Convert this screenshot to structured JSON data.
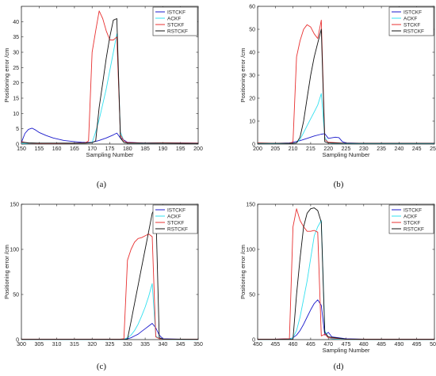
{
  "colors": {
    "ISTCKF": "#1a1acc",
    "ACKF": "#33e0f0",
    "STCKF": "#e83030",
    "RSTCKF": "#111111"
  },
  "chart_data": [
    {
      "type": "line",
      "caption": "(a)",
      "xlabel": "Sampling Number",
      "ylabel": "Positioning error /cm",
      "xlim": [
        150,
        200
      ],
      "ylim": [
        0,
        45
      ],
      "xticks": [
        150,
        155,
        160,
        165,
        170,
        175,
        180,
        185,
        190,
        195,
        200
      ],
      "yticks": [
        0,
        5,
        10,
        15,
        20,
        25,
        30,
        35,
        40
      ],
      "legend_position": "top-right",
      "series": [
        {
          "name": "ISTCKF",
          "x": [
            150,
            151,
            152,
            153,
            154,
            155,
            157,
            159,
            162,
            165,
            167,
            169,
            170,
            172,
            174,
            176,
            177,
            178,
            180,
            185,
            190,
            200
          ],
          "y": [
            0.5,
            3.5,
            4.8,
            5.2,
            4.6,
            3.8,
            2.8,
            2.0,
            1.2,
            0.8,
            0.6,
            0.5,
            0.6,
            1.2,
            2.0,
            3.0,
            3.6,
            2.0,
            0.6,
            0.3,
            0.4,
            0.3
          ]
        },
        {
          "name": "ACKF",
          "x": [
            150,
            160,
            168,
            170,
            171,
            172,
            173,
            174,
            175,
            176,
            177,
            178,
            179,
            180,
            185,
            190,
            200
          ],
          "y": [
            0.2,
            0.2,
            0.3,
            0.5,
            4,
            8,
            13,
            18,
            24,
            30,
            36,
            4,
            1,
            0.3,
            0.2,
            0.3,
            0.2
          ]
        },
        {
          "name": "STCKF",
          "x": [
            150,
            152,
            155,
            160,
            165,
            168,
            169,
            170,
            171,
            172,
            173,
            174,
            175,
            176,
            177,
            178,
            179,
            180,
            185,
            190,
            200
          ],
          "y": [
            0.8,
            0.3,
            0.2,
            0.2,
            0.3,
            0.4,
            1,
            30,
            37,
            43.5,
            41,
            37,
            34,
            34,
            35,
            3,
            1,
            0.5,
            0.3,
            0.4,
            0.3
          ]
        },
        {
          "name": "RSTCKF",
          "x": [
            150,
            152,
            155,
            160,
            165,
            168,
            169,
            170,
            171,
            172,
            173,
            174,
            175,
            176,
            177,
            178,
            179,
            180,
            185,
            190,
            200
          ],
          "y": [
            0.6,
            0.4,
            0.3,
            0.3,
            0.3,
            0.3,
            0.4,
            0.5,
            1,
            12,
            20,
            28,
            35,
            40.5,
            41,
            2,
            0.5,
            0.3,
            0.3,
            0.3,
            0.2
          ]
        }
      ]
    },
    {
      "type": "line",
      "caption": "(b)",
      "xlabel": "Sampling Number",
      "ylabel": "Positioning error /cm",
      "xlim": [
        200,
        250
      ],
      "ylim": [
        0,
        60
      ],
      "xticks": [
        200,
        205,
        210,
        215,
        220,
        225,
        230,
        235,
        240,
        245,
        250
      ],
      "yticks": [
        0,
        10,
        20,
        30,
        40,
        50,
        60
      ],
      "legend_position": "top-right",
      "series": [
        {
          "name": "ISTCKF",
          "x": [
            200,
            205,
            209,
            210,
            212,
            214,
            216,
            218,
            219,
            220,
            222,
            223,
            224,
            225,
            230,
            235,
            240,
            245,
            250
          ],
          "y": [
            0.3,
            0.3,
            0.5,
            0.8,
            1.5,
            2.5,
            3.5,
            4.3,
            4.5,
            2.5,
            3,
            2.8,
            1,
            0.5,
            0.3,
            0.3,
            0.3,
            0.3,
            0.3
          ]
        },
        {
          "name": "ACKF",
          "x": [
            200,
            205,
            210,
            211,
            212,
            213,
            214,
            215,
            216,
            217,
            218,
            219,
            220,
            221,
            225,
            230,
            240,
            250
          ],
          "y": [
            0.2,
            0.2,
            0.3,
            0.5,
            2,
            5,
            8,
            11,
            14,
            17,
            22,
            3,
            0.5,
            0.3,
            0.2,
            0.2,
            0.2,
            0.2
          ]
        },
        {
          "name": "STCKF",
          "x": [
            200,
            205,
            209,
            210,
            211,
            212,
            213,
            214,
            215,
            216,
            217,
            218,
            219,
            220,
            225,
            230,
            240,
            250
          ],
          "y": [
            0.5,
            0.3,
            0.3,
            1,
            38,
            45,
            50,
            52,
            51,
            48,
            46,
            54,
            2,
            0.8,
            0.3,
            0.3,
            0.3,
            0.3
          ]
        },
        {
          "name": "RSTCKF",
          "x": [
            200,
            205,
            210,
            211,
            212,
            213,
            214,
            215,
            216,
            217,
            218,
            219,
            220,
            225,
            230,
            240,
            250
          ],
          "y": [
            0.3,
            0.3,
            0.3,
            0.5,
            3,
            10,
            20,
            30,
            38,
            44,
            50,
            1,
            0.5,
            0.3,
            0.3,
            0.3,
            0.3
          ]
        }
      ]
    },
    {
      "type": "line",
      "caption": "(c)",
      "xlabel": "",
      "ylabel": "Positioning error /cm",
      "xlim": [
        300,
        350
      ],
      "ylim": [
        0,
        150
      ],
      "xticks": [
        300,
        305,
        310,
        315,
        320,
        325,
        330,
        335,
        340,
        345,
        350
      ],
      "yticks": [
        0,
        50,
        100,
        150
      ],
      "legend_position": "top-right",
      "series": [
        {
          "name": "ISTCKF",
          "x": [
            300,
            310,
            320,
            329,
            330,
            331,
            332,
            333,
            334,
            335,
            336,
            337,
            338,
            339,
            340,
            345,
            350
          ],
          "y": [
            0.5,
            0.5,
            0.5,
            0.5,
            1,
            2,
            4,
            6,
            9,
            12,
            15,
            18,
            13,
            5,
            1,
            0.5,
            0.5
          ]
        },
        {
          "name": "ACKF",
          "x": [
            300,
            310,
            320,
            329,
            330,
            331,
            332,
            333,
            334,
            335,
            336,
            337,
            338,
            339,
            340,
            350
          ],
          "y": [
            0.2,
            0.2,
            0.2,
            0.3,
            2,
            5,
            10,
            17,
            26,
            36,
            48,
            62,
            4,
            1,
            0.3,
            0.2
          ]
        },
        {
          "name": "STCKF",
          "x": [
            300,
            310,
            320,
            328,
            329,
            330,
            331,
            332,
            333,
            334,
            335,
            336,
            337,
            338,
            339,
            340,
            350
          ],
          "y": [
            0.5,
            0.5,
            0.5,
            0.5,
            1,
            88,
            100,
            108,
            112,
            113,
            115,
            117,
            114,
            3,
            1,
            0.5,
            0.5
          ]
        },
        {
          "name": "RSTCKF",
          "x": [
            300,
            310,
            320,
            329,
            330,
            331,
            332,
            333,
            334,
            335,
            336,
            337,
            338,
            339,
            340,
            350
          ],
          "y": [
            0.3,
            0.3,
            0.3,
            0.3,
            0.5,
            20,
            40,
            60,
            80,
            100,
            120,
            140,
            147,
            2,
            0.5,
            0.3
          ]
        }
      ]
    },
    {
      "type": "line",
      "caption": "(d)",
      "xlabel": "Sampling Number",
      "ylabel": "Positioning error /cm",
      "xlim": [
        450,
        500
      ],
      "ylim": [
        0,
        150
      ],
      "xticks": [
        450,
        455,
        460,
        465,
        470,
        475,
        480,
        485,
        490,
        495,
        500
      ],
      "yticks": [
        0,
        50,
        100,
        150
      ],
      "legend_position": "top-right",
      "series": [
        {
          "name": "ISTCKF",
          "x": [
            450,
            455,
            459,
            460,
            461,
            462,
            463,
            464,
            465,
            466,
            467,
            468,
            469,
            470,
            471,
            475,
            480,
            490,
            500
          ],
          "y": [
            0.5,
            0.5,
            0.8,
            2,
            5,
            10,
            17,
            25,
            33,
            40,
            44,
            38,
            5,
            8,
            3,
            1,
            0.5,
            0.5,
            0.5
          ]
        },
        {
          "name": "ACKF",
          "x": [
            450,
            455,
            459,
            460,
            461,
            462,
            463,
            464,
            465,
            466,
            467,
            468,
            469,
            470,
            471,
            475,
            480,
            490,
            500
          ],
          "y": [
            0.3,
            0.3,
            0.5,
            2,
            10,
            25,
            45,
            65,
            90,
            115,
            125,
            132,
            10,
            2,
            1,
            0.3,
            0.3,
            0.3,
            0.3
          ]
        },
        {
          "name": "STCKF",
          "x": [
            450,
            455,
            459,
            460,
            461,
            462,
            463,
            464,
            465,
            466,
            467,
            468,
            469,
            470,
            475,
            480,
            490,
            500
          ],
          "y": [
            0.5,
            0.5,
            1,
            125,
            145,
            132,
            125,
            120,
            120,
            121,
            119,
            4,
            6,
            2,
            0.5,
            0.5,
            0.5,
            0.5
          ]
        },
        {
          "name": "RSTCKF",
          "x": [
            450,
            455,
            460,
            461,
            462,
            463,
            464,
            465,
            466,
            467,
            468,
            469,
            470,
            475,
            480,
            490,
            500
          ],
          "y": [
            0.3,
            0.3,
            0.5,
            50,
            90,
            125,
            140,
            145,
            146,
            143,
            130,
            8,
            3,
            0.5,
            0.3,
            0.3,
            0.3
          ]
        }
      ]
    }
  ]
}
